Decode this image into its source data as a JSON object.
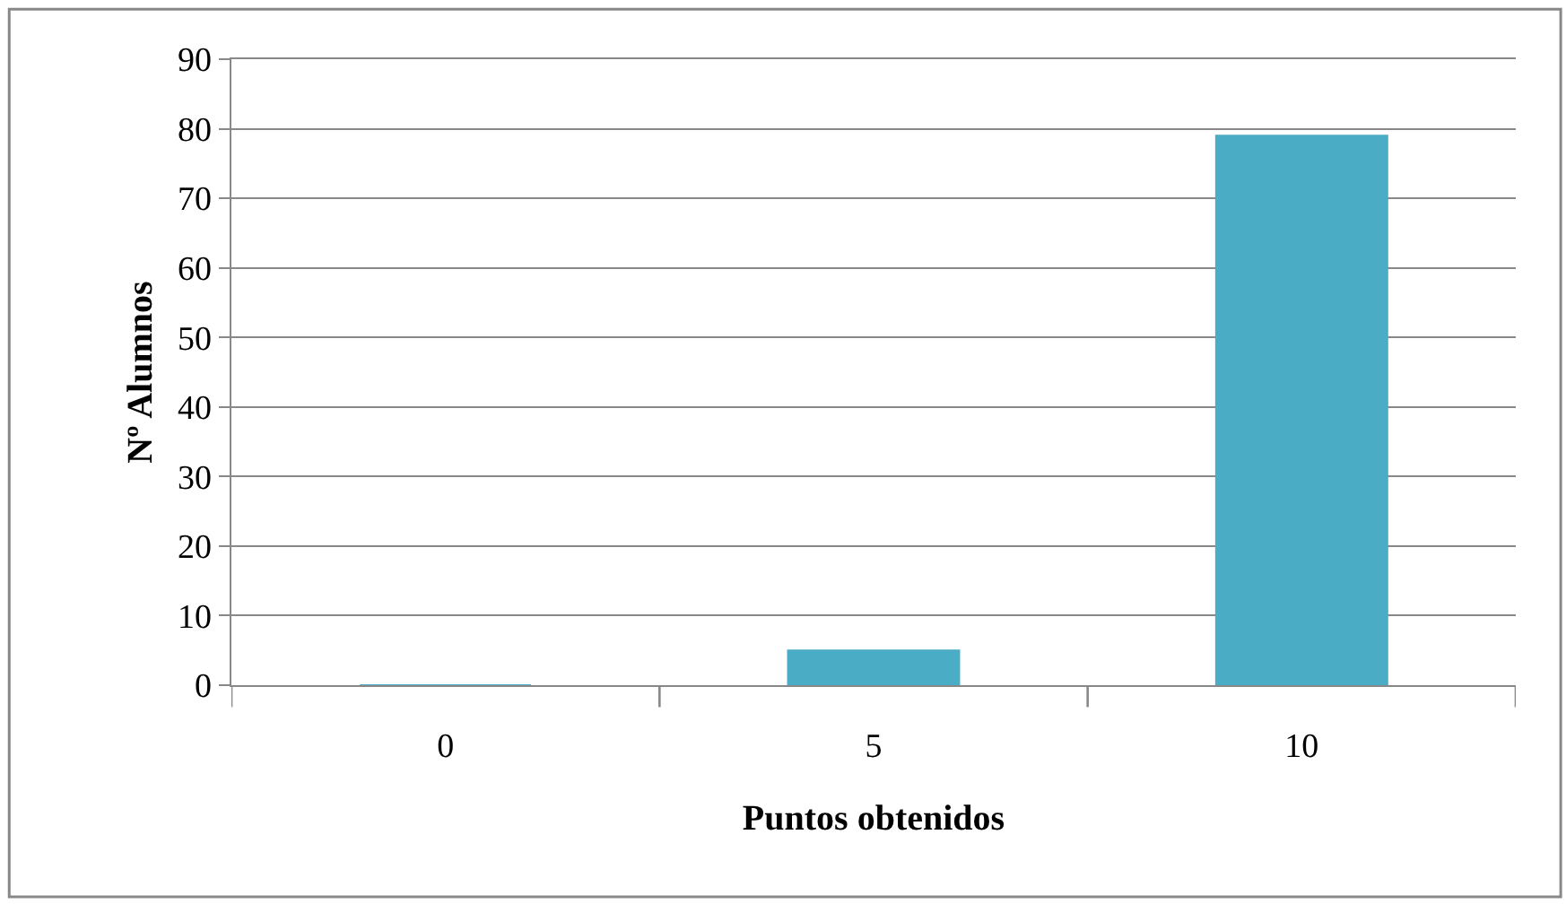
{
  "chart_data": {
    "type": "bar",
    "xlabel": "Puntos obtenidos",
    "ylabel": "Nº Alumnos",
    "categories": [
      "0",
      "5",
      "10"
    ],
    "values": [
      0,
      5,
      79
    ],
    "color": "#4bacc6",
    "ylim": [
      0,
      90
    ],
    "yticks": [
      0,
      10,
      20,
      30,
      40,
      50,
      60,
      70,
      80,
      90
    ],
    "grid": "y"
  }
}
